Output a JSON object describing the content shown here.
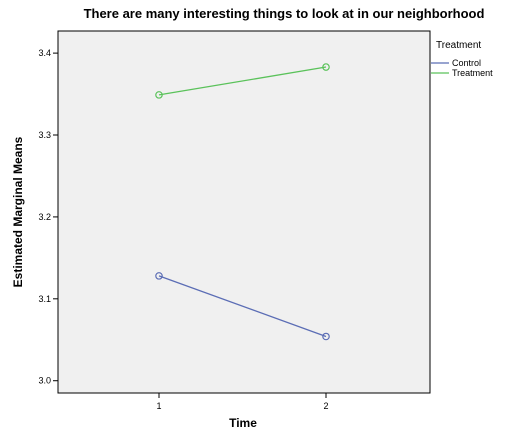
{
  "chart_data": {
    "type": "line",
    "title": "There are many interesting things to look at in our neighborhood",
    "xlabel": "Time",
    "ylabel": "Estimated Marginal Means",
    "categories": [
      "1",
      "2"
    ],
    "ylim": [
      2.985,
      3.427
    ],
    "yticks": [
      "3.0",
      "3.1",
      "3.2",
      "3.3",
      "3.4"
    ],
    "grid": false,
    "legend": {
      "title": "Treatment",
      "position": "right"
    },
    "plot_background": "#f0f0f0",
    "series": [
      {
        "name": "Control",
        "color": "#5b6db5",
        "values": [
          3.128,
          3.054
        ]
      },
      {
        "name": "Treatment",
        "color": "#5ac25a",
        "values": [
          3.349,
          3.383
        ]
      }
    ]
  }
}
